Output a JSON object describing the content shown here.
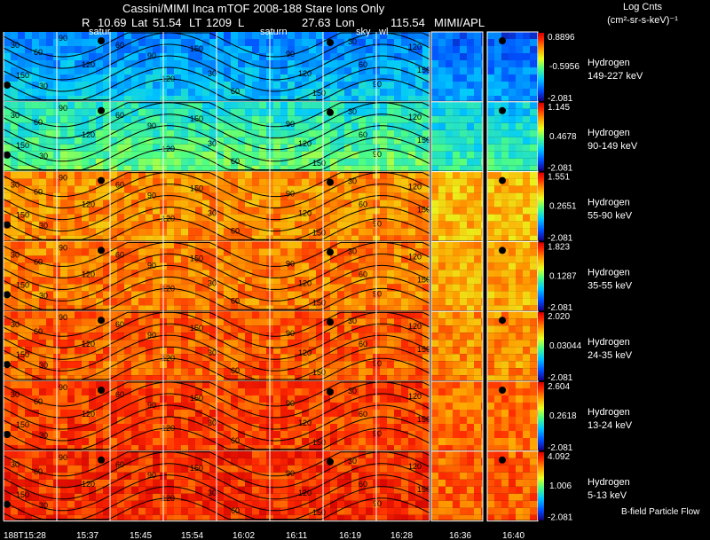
{
  "header": {
    "title_line": "Cassini/MIMI Inca mTOF   2008-188    Stare    Ions Only",
    "R_label": "R",
    "R_value": "10.69",
    "lat_label": "Lat",
    "lat_value": "51.54",
    "lt_label": "LT",
    "lt_value": "1209",
    "l_label": "L",
    "l_value": "27.63",
    "lon_label": "Lon",
    "lon_value": "115.54",
    "institution": "MIMI/APL"
  },
  "colorbar_header": {
    "line1": "Log Cnts",
    "line2": "(cm²-sr-s-keV)⁻¹"
  },
  "overlay_labels": {
    "saturn_1": "satur",
    "saturn_2": "saturn",
    "sky_1": "sky",
    "sky_2": "wl"
  },
  "chart_data": {
    "type": "heatmap",
    "title": "Cassini/MIMI Inca mTOF 2008-188 Stare Ions Only",
    "x_ticks": [
      "188T15:28",
      "15:37",
      "15:45",
      "15:54",
      "16:02",
      "16:11",
      "16:19",
      "16:28",
      "16:36",
      "16:40"
    ],
    "contour_levels": [
      "30",
      "60",
      "90",
      "120",
      "150"
    ],
    "panels": [
      {
        "species": "Hydrogen",
        "energy": "149-227 keV",
        "cmax": "0.8896",
        "cmid": "-0.5956",
        "cmin": "-2.081",
        "level": 0.28
      },
      {
        "species": "Hydrogen",
        "energy": "90-149 keV",
        "cmax": "1.145",
        "cmid": "0.4678",
        "cmin": "-2.081",
        "level": 0.45
      },
      {
        "species": "Hydrogen",
        "energy": "55-90 keV",
        "cmax": "1.551",
        "cmid": "0.2651",
        "cmin": "-2.081",
        "level": 0.78
      },
      {
        "species": "Hydrogen",
        "energy": "35-55 keV",
        "cmax": "1.823",
        "cmid": "0.1287",
        "cmin": "-2.081",
        "level": 0.8
      },
      {
        "species": "Hydrogen",
        "energy": "24-35 keV",
        "cmax": "2.020",
        "cmid": "0.03044",
        "cmin": "-2.081",
        "level": 0.84
      },
      {
        "species": "Hydrogen",
        "energy": "13-24 keV",
        "cmax": "2.604",
        "cmid": "0.2618",
        "cmin": "-2.081",
        "level": 0.88
      },
      {
        "species": "Hydrogen",
        "energy": "5-13 keV",
        "cmax": "4.092",
        "cmid": "1.006",
        "cmin": "-2.081",
        "level": 0.9
      }
    ],
    "grid": true
  },
  "footer": {
    "legend_note": "B-field Particle Flow"
  },
  "colors": {
    "background": "#000000",
    "contour": "#000000",
    "grid": "#ffffff"
  }
}
